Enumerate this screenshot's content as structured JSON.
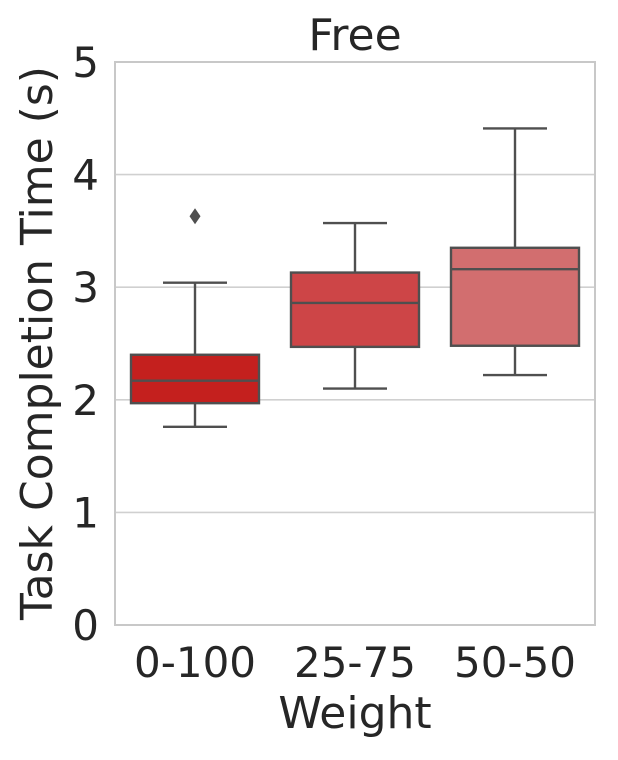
{
  "chart_data": {
    "type": "box",
    "title": "Free",
    "xlabel": "Weight",
    "ylabel": "Task Completion Time (s)",
    "ylim": [
      0,
      5
    ],
    "yticks": [
      "0",
      "1",
      "2",
      "3",
      "4",
      "5"
    ],
    "grid": true,
    "categories": [
      "0-100",
      "25-75",
      "50-50"
    ],
    "boxes": [
      {
        "category": "0-100",
        "whisker_low": 1.76,
        "q1": 1.97,
        "median": 2.17,
        "q3": 2.4,
        "whisker_high": 3.04,
        "outliers": [
          3.63
        ],
        "color": "#c4201e"
      },
      {
        "category": "25-75",
        "whisker_low": 2.1,
        "q1": 2.47,
        "median": 2.86,
        "q3": 3.13,
        "whisker_high": 3.57,
        "outliers": [],
        "color": "#cd4547"
      },
      {
        "category": "50-50",
        "whisker_low": 2.22,
        "q1": 2.48,
        "median": 3.16,
        "q3": 3.35,
        "whisker_high": 4.41,
        "outliers": [],
        "color": "#d26e6f"
      }
    ],
    "line_color": "#4f4f4f",
    "grid_color": "#d0d0d0",
    "frame_color": "#c8c8c8"
  }
}
